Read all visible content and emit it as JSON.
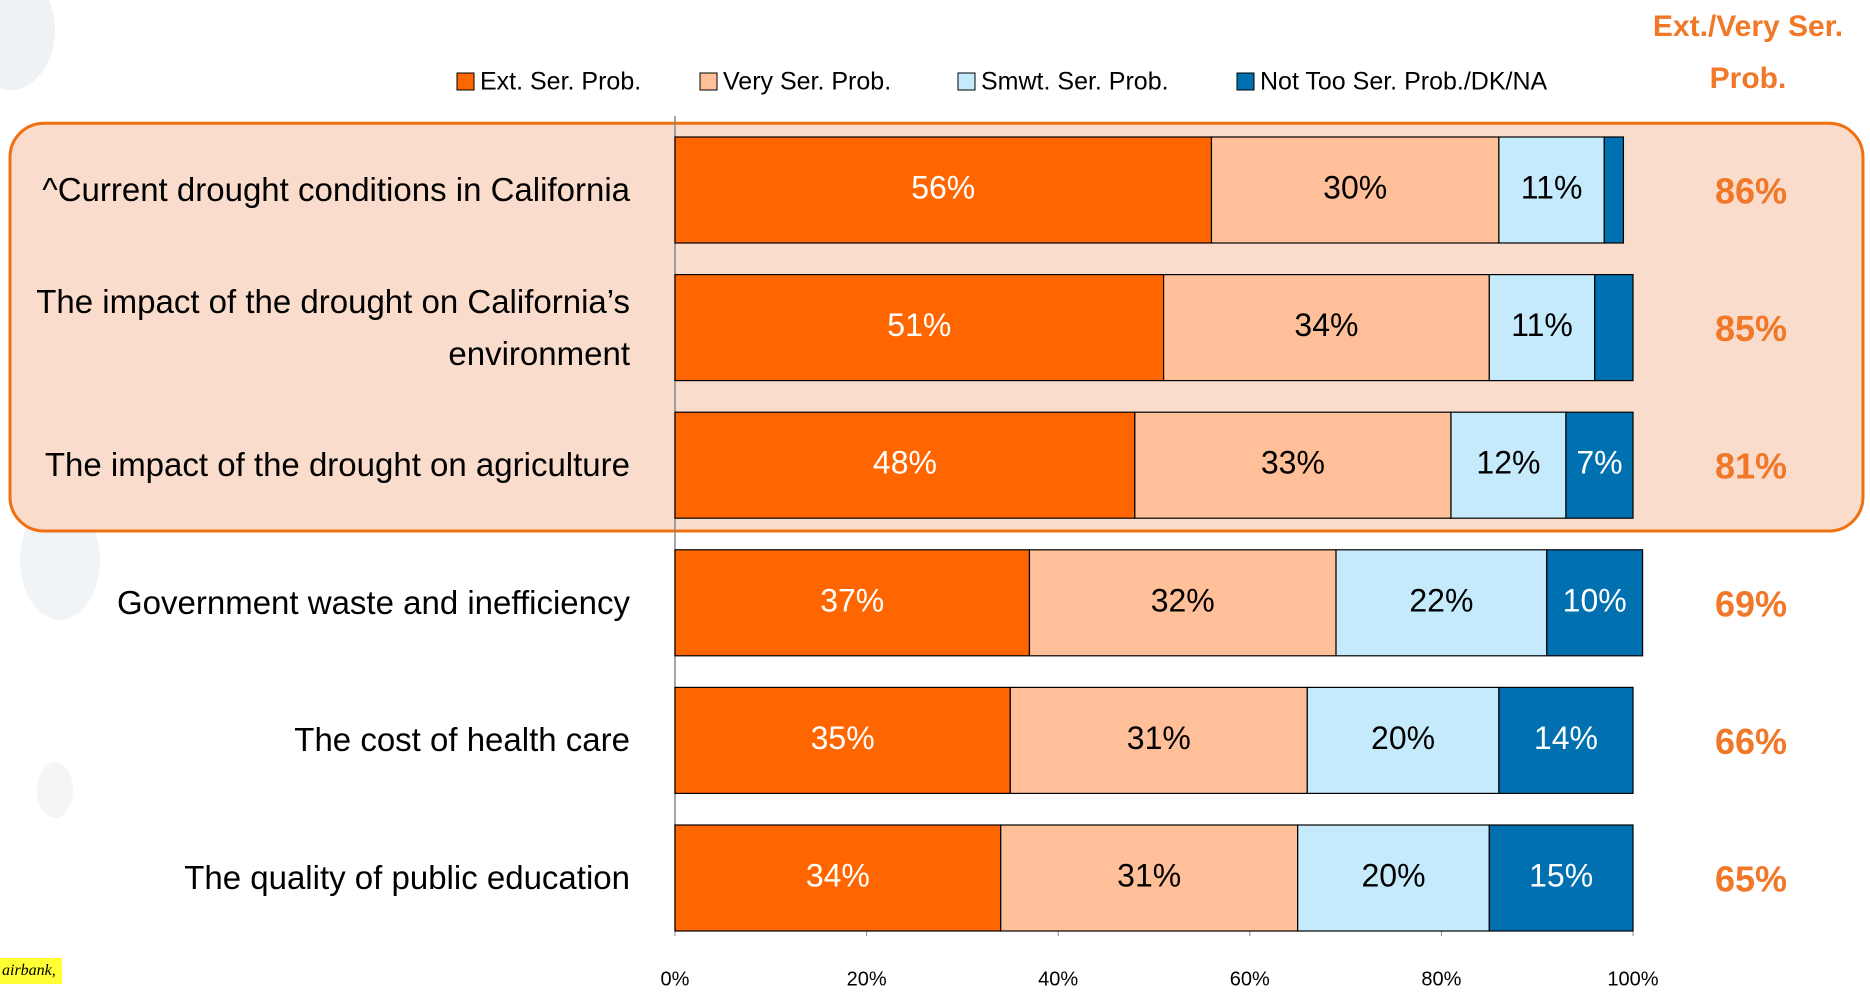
{
  "chart_data": {
    "type": "stacked-bar-horizontal",
    "categories": [
      "^Current drought conditions in California",
      "The impact of the drought on California’s environment",
      "The impact of the drought on agriculture",
      "Government waste and inefficiency",
      "The cost of health care",
      "The quality of public education"
    ],
    "series": [
      {
        "name": "Ext. Ser. Prob.",
        "color": "#ff6600",
        "values": [
          56,
          51,
          48,
          37,
          35,
          34
        ],
        "value_labels": [
          "56%",
          "51%",
          "48%",
          "37%",
          "35%",
          "34%"
        ]
      },
      {
        "name": "Very Ser. Prob.",
        "color": "#ffbf99",
        "values": [
          30,
          34,
          33,
          32,
          31,
          31
        ],
        "value_labels": [
          "30%",
          "34%",
          "33%",
          "32%",
          "31%",
          "31%"
        ]
      },
      {
        "name": "Smwt. Ser. Prob.",
        "color": "#c5eafc",
        "values": [
          11,
          11,
          12,
          22,
          20,
          20
        ],
        "value_labels": [
          "11%",
          "11%",
          "12%",
          "22%",
          "20%",
          "20%"
        ]
      },
      {
        "name": "Not Too Ser. Prob./DK/NA",
        "color": "#0070b0",
        "values": [
          2,
          4,
          7,
          10,
          14,
          15
        ],
        "value_labels": [
          null,
          null,
          "7%",
          "10%",
          "14%",
          "15%"
        ]
      }
    ],
    "xlim": [
      0,
      100
    ],
    "xticks": [
      {
        "value": 0,
        "label": "0%"
      },
      {
        "value": 20,
        "label": "20%"
      },
      {
        "value": 40,
        "label": "40%"
      },
      {
        "value": 60,
        "label": "60%"
      },
      {
        "value": 80,
        "label": "80%"
      },
      {
        "value": 100,
        "label": "100%"
      }
    ],
    "net": {
      "title": "Ext./Very Ser. Prob.",
      "values": [
        86,
        85,
        81,
        69,
        66,
        65
      ],
      "value_labels": [
        "86%",
        "85%",
        "81%",
        "69%",
        "66%",
        "65%"
      ],
      "color": "#f07828"
    },
    "highlight_rows": [
      0,
      1,
      2
    ],
    "footnote": "airbank,"
  }
}
